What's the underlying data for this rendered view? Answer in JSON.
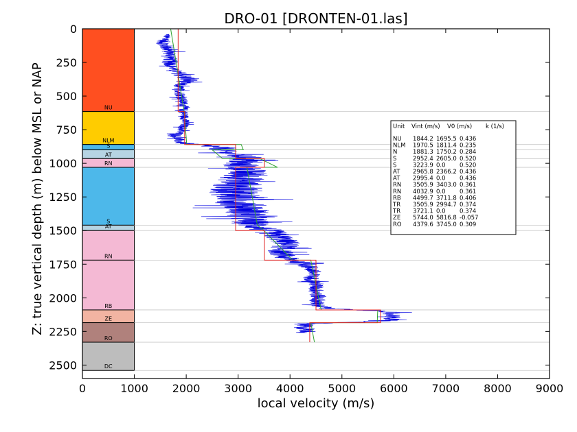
{
  "chart_data": {
    "type": "line",
    "title": "DRO-01 [DRONTEN-01.las]",
    "xlabel": "local velocity (m/s)",
    "ylabel": "Z: true vertical depth (m) below MSL or NAP",
    "xlim": [
      0,
      9000
    ],
    "ylim": [
      2600,
      0
    ],
    "y_inverted": true,
    "x_ticks": [
      0,
      1000,
      2000,
      3000,
      4000,
      5000,
      6000,
      7000,
      8000,
      9000
    ],
    "y_ticks": [
      0,
      250,
      500,
      750,
      1000,
      1250,
      1500,
      1750,
      2000,
      2250,
      2500
    ],
    "grid": false,
    "units": [
      {
        "name": "NU",
        "top": 0,
        "bottom": 615,
        "color": "#ff4f20"
      },
      {
        "name": "NLM",
        "top": 615,
        "bottom": 860,
        "color": "#ffcc00"
      },
      {
        "name": "S",
        "top": 860,
        "bottom": 900,
        "color": "#4db8ea"
      },
      {
        "name": "AT",
        "top": 900,
        "bottom": 965,
        "color": "#b6d4e3"
      },
      {
        "name": "RN",
        "top": 965,
        "bottom": 1030,
        "color": "#f4b9d4"
      },
      {
        "name": "S",
        "top": 1030,
        "bottom": 1460,
        "color": "#4db8ea"
      },
      {
        "name": "AT",
        "top": 1460,
        "bottom": 1500,
        "color": "#b6d4e3"
      },
      {
        "name": "RN",
        "top": 1500,
        "bottom": 1720,
        "color": "#f4b9d4"
      },
      {
        "name": "RB",
        "top": 1720,
        "bottom": 2090,
        "color": "#f4b9d4"
      },
      {
        "name": "ZE",
        "top": 2090,
        "bottom": 2185,
        "color": "#f2b4a2"
      },
      {
        "name": "RO",
        "top": 2185,
        "bottom": 2330,
        "color": "#b0817c"
      },
      {
        "name": "DC",
        "top": 2330,
        "bottom": 2540,
        "color": "#bdbdbd"
      }
    ],
    "series": [
      {
        "role": "vint_steps",
        "color": "#e02020",
        "points": [
          [
            1844,
            0
          ],
          [
            1844,
            615
          ],
          [
            1970,
            615
          ],
          [
            1970,
            860
          ],
          [
            2952,
            860
          ],
          [
            2952,
            965
          ],
          [
            3506,
            965
          ],
          [
            3506,
            1030
          ],
          [
            2952,
            1030
          ],
          [
            2952,
            1500
          ],
          [
            3506,
            1500
          ],
          [
            3506,
            1720
          ],
          [
            4500,
            1720
          ],
          [
            4500,
            2090
          ],
          [
            5744,
            2090
          ],
          [
            5744,
            2185
          ],
          [
            4380,
            2185
          ],
          [
            4380,
            2330
          ]
        ]
      },
      {
        "role": "v0_k_trend",
        "color": "#30a030",
        "points": [
          [
            1700,
            0
          ],
          [
            1960,
            615
          ],
          [
            1960,
            615
          ],
          [
            2010,
            860
          ],
          [
            3060,
            860
          ],
          [
            3100,
            900
          ],
          [
            2500,
            900
          ],
          [
            2700,
            965
          ],
          [
            3420,
            965
          ],
          [
            3760,
            1030
          ],
          [
            3170,
            1030
          ],
          [
            3370,
            1460
          ],
          [
            3500,
            1500
          ],
          [
            4050,
            1720
          ],
          [
            4400,
            1720
          ],
          [
            4600,
            2090
          ],
          [
            5690,
            2090
          ],
          [
            5680,
            2185
          ],
          [
            4400,
            2185
          ],
          [
            4470,
            2330
          ]
        ]
      },
      {
        "role": "log_velocity",
        "color": "#0000e0",
        "profile": [
          [
            40,
            1650,
            60
          ],
          [
            100,
            1550,
            180
          ],
          [
            150,
            1650,
            200
          ],
          [
            200,
            1700,
            160
          ],
          [
            250,
            1680,
            200
          ],
          [
            300,
            1750,
            120
          ],
          [
            340,
            1900,
            220
          ],
          [
            380,
            2050,
            280
          ],
          [
            420,
            1850,
            140
          ],
          [
            480,
            1880,
            140
          ],
          [
            560,
            1950,
            120
          ],
          [
            620,
            1950,
            120
          ],
          [
            700,
            1980,
            120
          ],
          [
            760,
            1900,
            120
          ],
          [
            800,
            1800,
            150
          ],
          [
            850,
            1900,
            150
          ],
          [
            880,
            2650,
            350
          ],
          [
            920,
            2750,
            300
          ],
          [
            960,
            3200,
            400
          ],
          [
            1000,
            3000,
            450
          ],
          [
            1050,
            3150,
            500
          ],
          [
            1100,
            3100,
            550
          ],
          [
            1150,
            3000,
            600
          ],
          [
            1200,
            2950,
            650
          ],
          [
            1250,
            3000,
            650
          ],
          [
            1300,
            3050,
            600
          ],
          [
            1350,
            3200,
            550
          ],
          [
            1400,
            3150,
            550
          ],
          [
            1450,
            3250,
            450
          ],
          [
            1500,
            3550,
            400
          ],
          [
            1550,
            3800,
            350
          ],
          [
            1600,
            3950,
            350
          ],
          [
            1650,
            3800,
            300
          ],
          [
            1700,
            3900,
            300
          ],
          [
            1750,
            4300,
            250
          ],
          [
            1800,
            4450,
            200
          ],
          [
            1850,
            4400,
            200
          ],
          [
            1900,
            4500,
            200
          ],
          [
            1950,
            4500,
            200
          ],
          [
            2000,
            4550,
            200
          ],
          [
            2050,
            4500,
            200
          ],
          [
            2080,
            4700,
            250
          ],
          [
            2100,
            5900,
            250
          ],
          [
            2130,
            6000,
            200
          ],
          [
            2170,
            5900,
            250
          ],
          [
            2195,
            4200,
            300
          ],
          [
            2230,
            4300,
            250
          ],
          [
            2260,
            4350,
            200
          ]
        ]
      }
    ],
    "table": {
      "header": [
        "Unit",
        "Vint (m/s)",
        "V0 (m/s)",
        "k (1/s)"
      ],
      "rows": [
        [
          "NU",
          "1844.2",
          "1695.5",
          "0.436"
        ],
        [
          "NLM",
          "1970.5",
          "1811.4",
          "0.235"
        ],
        [
          "N",
          "1881.3",
          "1750.2",
          "0.284"
        ],
        [
          "S",
          "2952.4",
          "2605.0",
          "0.520"
        ],
        [
          "S",
          "3223.9",
          "0.0",
          "0.520"
        ],
        [
          "AT",
          "2965.8",
          "2366.2",
          "0.436"
        ],
        [
          "AT",
          "2995.4",
          "0.0",
          "0.436"
        ],
        [
          "RN",
          "3505.9",
          "3403.0",
          "0.361"
        ],
        [
          "RN",
          "4032.9",
          "0.0",
          "0.361"
        ],
        [
          "RB",
          "4499.7",
          "3711.8",
          "0.406"
        ],
        [
          "TR",
          "3505.9",
          "2994.7",
          "0.374"
        ],
        [
          "TR",
          "3721.1",
          "0.0",
          "0.374"
        ],
        [
          "ZE",
          "5744.0",
          "5816.8",
          "-0.057"
        ],
        [
          "RO",
          "4379.6",
          "3745.0",
          "0.309"
        ]
      ]
    }
  }
}
